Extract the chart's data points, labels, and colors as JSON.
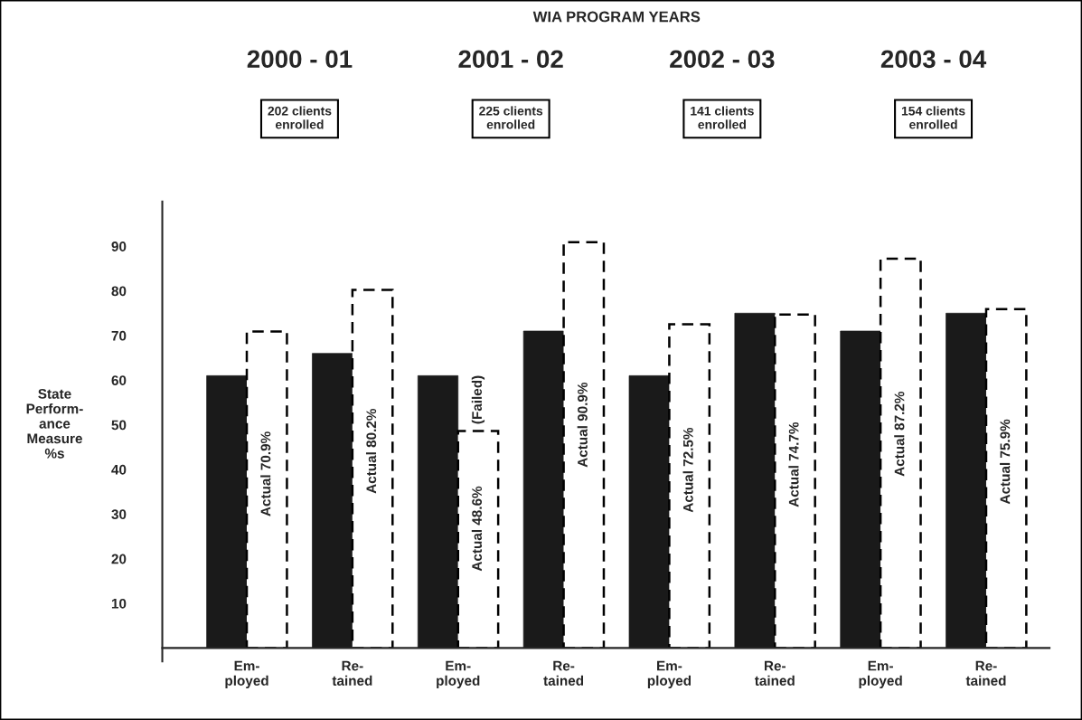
{
  "chart_data": {
    "type": "bar",
    "title": "WIA PROGRAM YEARS",
    "ylabel": "State\nPerform-\nance\nMeasure\n%s",
    "categories": [
      "Em-\nployed",
      "Re-\ntained",
      "Em-\nployed",
      "Re-\ntained",
      "Em-\nployed",
      "Re-\ntained",
      "Em-\nployed",
      "Re-\ntained"
    ],
    "series": [
      {
        "color": "#1a1a1a",
        "values": [
          61,
          66,
          61,
          71,
          61,
          75,
          71,
          75
        ]
      },
      {
        "color": "#ffffff",
        "line_style": "dashed",
        "values": [
          70.9,
          80.2,
          48.6,
          90.9,
          72.5,
          74.7,
          87.2,
          75.9
        ],
        "value_labels": [
          "Actual 70.9%",
          "Actual 80.2%",
          "Actual 48.6%",
          "Actual 90.9%",
          "Actual 72.5%",
          "Actual 74.7%",
          "Actual 87.2%",
          "Actual 75.9%"
        ]
      }
    ],
    "ylim": [
      0,
      100
    ],
    "yticks": [
      10,
      20,
      30,
      40,
      50,
      60,
      70,
      80,
      90
    ],
    "grid": false,
    "annotations": [
      "2000 - 01",
      "202 clients\nenrolled",
      "2001 - 02",
      "225 clients\nenrolled",
      "2002 - 03",
      "141 clients\nenrolled",
      "2003 - 04",
      "154 clients\nenrolled",
      "(Failed)"
    ]
  }
}
